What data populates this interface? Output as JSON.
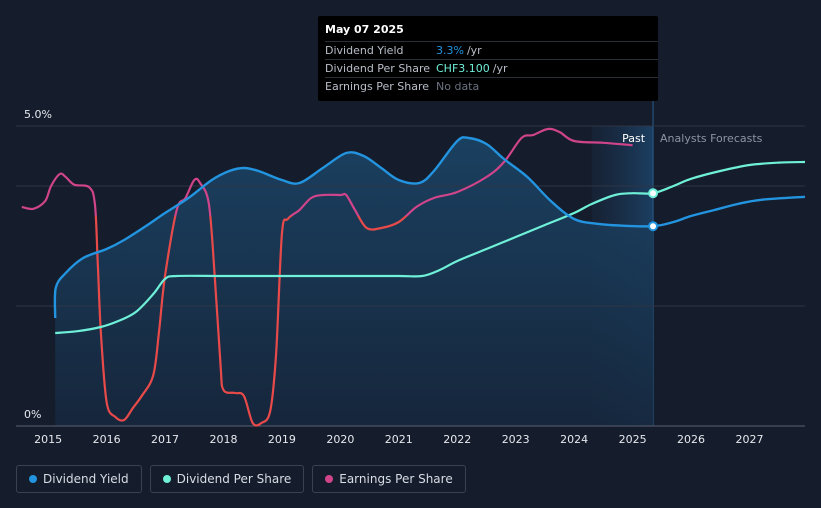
{
  "tooltip": {
    "date": "May 07 2025",
    "rows": [
      {
        "label": "Dividend Yield",
        "value": "3.3%",
        "unit": "/yr",
        "color": "#2394df"
      },
      {
        "label": "Dividend Per Share",
        "value": "CHF3.100",
        "unit": "/yr",
        "color": "#6ff0d8"
      },
      {
        "label": "Earnings Per Share",
        "value": "No data",
        "unit": "",
        "color": "#6b7280"
      }
    ]
  },
  "legend": [
    {
      "label": "Dividend Yield",
      "color": "#2394df"
    },
    {
      "label": "Dividend Per Share",
      "color": "#6ff0d8"
    },
    {
      "label": "Earnings Per Share",
      "color": "#d0448a"
    }
  ],
  "chart_data": {
    "type": "line",
    "y_axis_labels": [
      "5.0%",
      "0%"
    ],
    "ylim": [
      0,
      5
    ],
    "xlim": [
      2014.45,
      2027.95
    ],
    "x_ticks": [
      2015,
      2016,
      2017,
      2018,
      2019,
      2020,
      2021,
      2022,
      2023,
      2024,
      2025,
      2026,
      2027
    ],
    "region_labels": {
      "past": "Past",
      "forecast": "Analysts Forecasts"
    },
    "past_end_x": 2025.35,
    "shaded_band": [
      2024.3,
      2025.35
    ],
    "grid": true,
    "colors": {
      "yield": "#2394df",
      "dps": "#6ff0d8",
      "eps_pos": "#d0448a",
      "eps_neg": "#e84a4a"
    },
    "series": [
      {
        "name": "Dividend Yield",
        "key": "yield",
        "values": [
          [
            2015.12,
            1.8
          ],
          [
            2015.13,
            2.3
          ],
          [
            2015.3,
            2.55
          ],
          [
            2015.6,
            2.8
          ],
          [
            2016.0,
            2.95
          ],
          [
            2016.3,
            3.1
          ],
          [
            2016.7,
            3.35
          ],
          [
            2017.0,
            3.55
          ],
          [
            2017.4,
            3.8
          ],
          [
            2017.8,
            4.1
          ],
          [
            2018.1,
            4.25
          ],
          [
            2018.35,
            4.3
          ],
          [
            2018.6,
            4.25
          ],
          [
            2019.0,
            4.1
          ],
          [
            2019.3,
            4.05
          ],
          [
            2019.7,
            4.3
          ],
          [
            2020.1,
            4.55
          ],
          [
            2020.4,
            4.5
          ],
          [
            2020.7,
            4.3
          ],
          [
            2021.0,
            4.1
          ],
          [
            2021.35,
            4.05
          ],
          [
            2021.6,
            4.25
          ],
          [
            2022.0,
            4.75
          ],
          [
            2022.2,
            4.8
          ],
          [
            2022.5,
            4.7
          ],
          [
            2022.8,
            4.45
          ],
          [
            2023.2,
            4.15
          ],
          [
            2023.6,
            3.75
          ],
          [
            2024.0,
            3.45
          ],
          [
            2024.4,
            3.37
          ],
          [
            2024.8,
            3.34
          ],
          [
            2025.35,
            3.33
          ],
          [
            2025.7,
            3.4
          ],
          [
            2026.0,
            3.5
          ],
          [
            2026.4,
            3.6
          ],
          [
            2026.8,
            3.7
          ],
          [
            2027.2,
            3.77
          ],
          [
            2027.95,
            3.82
          ]
        ]
      },
      {
        "name": "Dividend Per Share",
        "key": "dps",
        "values": [
          [
            2015.12,
            1.55
          ],
          [
            2015.5,
            1.58
          ],
          [
            2015.9,
            1.65
          ],
          [
            2016.2,
            1.75
          ],
          [
            2016.5,
            1.9
          ],
          [
            2016.8,
            2.2
          ],
          [
            2017.0,
            2.45
          ],
          [
            2017.2,
            2.5
          ],
          [
            2018.0,
            2.5
          ],
          [
            2019.0,
            2.5
          ],
          [
            2020.0,
            2.5
          ],
          [
            2021.0,
            2.5
          ],
          [
            2021.4,
            2.5
          ],
          [
            2021.7,
            2.6
          ],
          [
            2022.0,
            2.75
          ],
          [
            2022.5,
            2.95
          ],
          [
            2023.0,
            3.15
          ],
          [
            2023.5,
            3.35
          ],
          [
            2024.0,
            3.55
          ],
          [
            2024.3,
            3.7
          ],
          [
            2024.7,
            3.85
          ],
          [
            2025.0,
            3.88
          ],
          [
            2025.35,
            3.88
          ],
          [
            2025.7,
            4.0
          ],
          [
            2026.0,
            4.12
          ],
          [
            2026.5,
            4.25
          ],
          [
            2027.0,
            4.35
          ],
          [
            2027.5,
            4.39
          ],
          [
            2027.95,
            4.4
          ]
        ]
      },
      {
        "name": "Earnings Per Share",
        "key": "eps",
        "values": [
          [
            2014.55,
            3.65
          ],
          [
            2014.75,
            3.62
          ],
          [
            2014.95,
            3.75
          ],
          [
            2015.05,
            4.0
          ],
          [
            2015.2,
            4.2
          ],
          [
            2015.3,
            4.15
          ],
          [
            2015.45,
            4.02
          ],
          [
            2015.7,
            3.98
          ],
          [
            2015.8,
            3.7
          ],
          [
            2015.85,
            2.7
          ],
          [
            2015.9,
            1.6
          ],
          [
            2016.0,
            0.4
          ],
          [
            2016.15,
            0.15
          ],
          [
            2016.3,
            0.1
          ],
          [
            2016.45,
            0.3
          ],
          [
            2016.6,
            0.5
          ],
          [
            2016.8,
            0.85
          ],
          [
            2016.9,
            1.6
          ],
          [
            2017.0,
            2.5
          ],
          [
            2017.2,
            3.6
          ],
          [
            2017.35,
            3.8
          ],
          [
            2017.5,
            4.1
          ],
          [
            2017.6,
            4.05
          ],
          [
            2017.75,
            3.7
          ],
          [
            2017.85,
            2.5
          ],
          [
            2017.95,
            1.0
          ],
          [
            2018.0,
            0.6
          ],
          [
            2018.2,
            0.55
          ],
          [
            2018.35,
            0.5
          ],
          [
            2018.5,
            0.05
          ],
          [
            2018.65,
            0.05
          ],
          [
            2018.8,
            0.25
          ],
          [
            2018.9,
            1.2
          ],
          [
            2019.0,
            3.2
          ],
          [
            2019.1,
            3.45
          ],
          [
            2019.3,
            3.6
          ],
          [
            2019.5,
            3.8
          ],
          [
            2019.7,
            3.85
          ],
          [
            2020.0,
            3.85
          ],
          [
            2020.1,
            3.85
          ],
          [
            2020.25,
            3.6
          ],
          [
            2020.45,
            3.3
          ],
          [
            2020.7,
            3.3
          ],
          [
            2021.0,
            3.4
          ],
          [
            2021.3,
            3.65
          ],
          [
            2021.6,
            3.8
          ],
          [
            2022.0,
            3.9
          ],
          [
            2022.5,
            4.15
          ],
          [
            2022.8,
            4.4
          ],
          [
            2023.1,
            4.8
          ],
          [
            2023.3,
            4.85
          ],
          [
            2023.55,
            4.95
          ],
          [
            2023.75,
            4.9
          ],
          [
            2024.0,
            4.75
          ],
          [
            2024.5,
            4.72
          ],
          [
            2025.0,
            4.68
          ]
        ]
      }
    ],
    "forecast_markers": [
      {
        "series": "dps",
        "x": 2025.35,
        "y": 3.88
      },
      {
        "series": "yield",
        "x": 2025.35,
        "y": 3.33
      }
    ]
  }
}
